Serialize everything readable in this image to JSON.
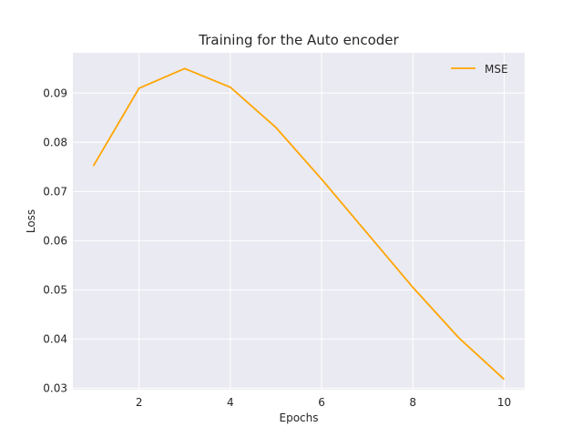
{
  "chart_data": {
    "type": "line",
    "title": "Training for the Auto encoder",
    "xlabel": "Epochs",
    "ylabel": "Loss",
    "x": [
      1,
      2,
      3,
      4,
      5,
      6,
      7,
      8,
      9,
      10
    ],
    "series": [
      {
        "name": "MSE",
        "color": "#ffa500",
        "values": [
          0.0752,
          0.091,
          0.095,
          0.0912,
          0.083,
          0.0725,
          0.0615,
          0.0505,
          0.0403,
          0.0318
        ]
      }
    ],
    "xlim": [
      0.55,
      10.45
    ],
    "ylim": [
      0.0297,
      0.0982
    ],
    "xticks": [
      2,
      4,
      6,
      8,
      10
    ],
    "yticks": [
      0.03,
      0.04,
      0.05,
      0.06,
      0.07,
      0.08,
      0.09
    ],
    "xtick_labels": [
      "2",
      "4",
      "6",
      "8",
      "10"
    ],
    "ytick_labels": [
      "0.03",
      "0.04",
      "0.05",
      "0.06",
      "0.07",
      "0.08",
      "0.09"
    ],
    "grid": true,
    "legend_position": "top-right",
    "background_color": "#eaeaf2",
    "grid_color": "#ffffff"
  }
}
